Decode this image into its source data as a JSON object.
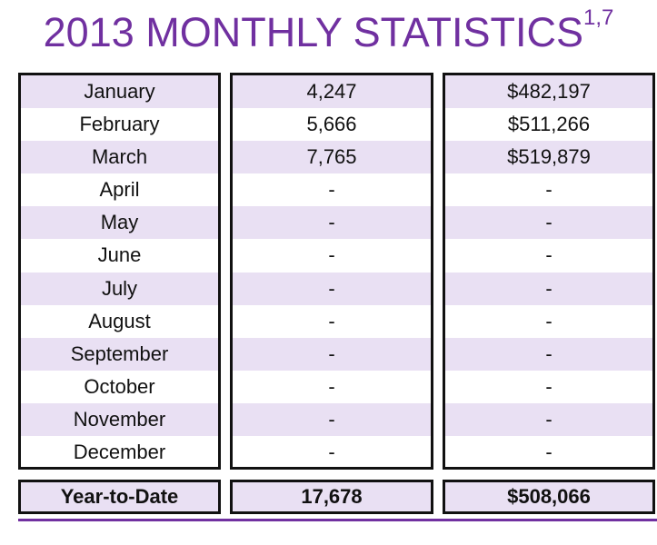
{
  "title": {
    "text": "2013 MONTHLY STATISTICS",
    "superscript": "1,7",
    "color": "#7030a0"
  },
  "shade_color": "#e9e0f3",
  "months": [
    "January",
    "February",
    "March",
    "April",
    "May",
    "June",
    "July",
    "August",
    "September",
    "October",
    "November",
    "December"
  ],
  "counts": [
    "4,247",
    "5,666",
    "7,765",
    "-",
    "-",
    "-",
    "-",
    "-",
    "-",
    "-",
    "-",
    "-"
  ],
  "amounts": [
    "$482,197",
    "$511,266",
    "$519,879",
    "-",
    "-",
    "-",
    "-",
    "-",
    "-",
    "-",
    "-",
    "-"
  ],
  "ytd": {
    "label": "Year-to-Date",
    "count": "17,678",
    "amount": "$508,066"
  }
}
